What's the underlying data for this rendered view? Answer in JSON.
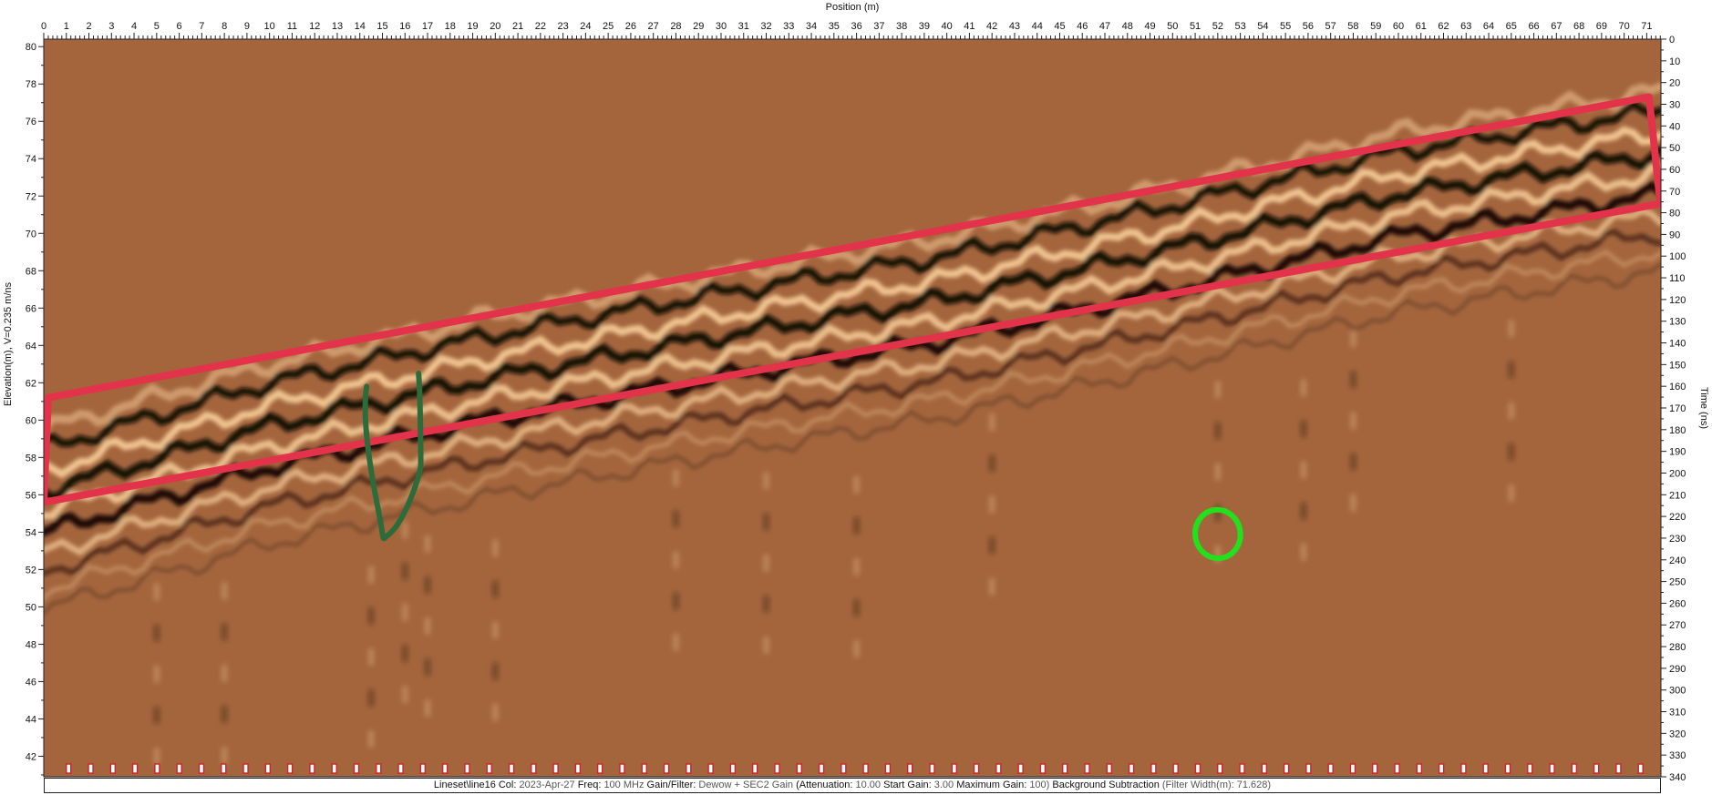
{
  "chart_data": {
    "type": "heatmap",
    "title": "",
    "xlabel": "Position (m)",
    "ylabel_left": "Elevation(m), V=0.235 m/ns",
    "ylabel_right": "Time (ns)",
    "x_range": [
      0,
      71.63
    ],
    "x_ticks": [
      0,
      1,
      2,
      3,
      4,
      5,
      6,
      7,
      8,
      9,
      10,
      11,
      12,
      13,
      14,
      15,
      16,
      17,
      18,
      19,
      20,
      21,
      22,
      23,
      24,
      25,
      26,
      27,
      28,
      29,
      30,
      31,
      32,
      33,
      34,
      35,
      36,
      37,
      38,
      39,
      40,
      41,
      42,
      43,
      44,
      45,
      46,
      47,
      48,
      49,
      50,
      51,
      52,
      53,
      54,
      55,
      56,
      57,
      58,
      59,
      60,
      61,
      62,
      63,
      64,
      65,
      66,
      67,
      68,
      69,
      70,
      71
    ],
    "elevation_range": [
      40.9,
      80.4
    ],
    "elevation_ticks": [
      42,
      44,
      46,
      48,
      50,
      52,
      54,
      56,
      58,
      60,
      62,
      64,
      66,
      68,
      70,
      72,
      74,
      76,
      78,
      80
    ],
    "time_range": [
      0,
      340
    ],
    "time_ticks": [
      0,
      10,
      20,
      30,
      40,
      50,
      60,
      70,
      80,
      90,
      100,
      110,
      120,
      130,
      140,
      150,
      160,
      170,
      180,
      190,
      200,
      210,
      220,
      230,
      240,
      250,
      260,
      270,
      280,
      290,
      300,
      310,
      320,
      330,
      340
    ],
    "surface_elevation": [
      [
        0,
        58.5
      ],
      [
        10,
        62.0
      ],
      [
        20,
        64.6
      ],
      [
        30,
        66.8
      ],
      [
        40,
        68.8
      ],
      [
        50,
        71.5
      ],
      [
        60,
        74.4
      ],
      [
        71.6,
        76.6
      ]
    ],
    "annotations": [
      {
        "shape": "polygon",
        "color": "#e2334a",
        "points": [
          [
            0.2,
            61.2
          ],
          [
            71.1,
            77.3
          ],
          [
            71.6,
            71.6
          ],
          [
            0,
            55.6
          ]
        ]
      },
      {
        "shape": "U-curve",
        "color": "#2e6b3a",
        "points": [
          [
            14.3,
            61.8
          ],
          [
            14.6,
            56.5
          ],
          [
            15.2,
            53.8
          ],
          [
            16.2,
            54.6
          ],
          [
            16.7,
            57.6
          ],
          [
            16.6,
            62.5
          ]
        ]
      },
      {
        "shape": "ellipse",
        "color": "#22e01c",
        "center": [
          52.0,
          53.9
        ],
        "radius_x": 1.0,
        "radius_y": 1.3
      }
    ],
    "trace_markers_count": 72,
    "colors": {
      "background": "#a4653d",
      "dark_band": "#0c0705",
      "light_band": "#f3c995"
    }
  },
  "info_bar": [
    {
      "k": "Lineset\\line16  Col: ",
      "v": "2023-Apr-27"
    },
    {
      "k": " Freq: ",
      "v": "100 MHz"
    },
    {
      "k": " Gain/Filter: ",
      "v": "Dewow + SEC2 Gain"
    },
    {
      "k": " (Attenuation: ",
      "v": "10.00"
    },
    {
      "k": " Start Gain: ",
      "v": "3.00"
    },
    {
      "k": " Maximum Gain: ",
      "v": "100)"
    },
    {
      "k": " Background Subtraction",
      "v": " (Filter Width(m): 71.628)"
    }
  ]
}
